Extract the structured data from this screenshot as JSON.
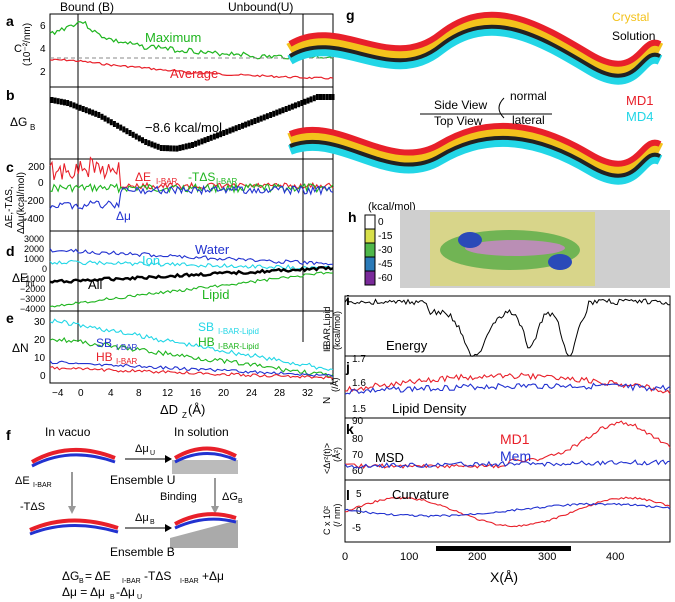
{
  "figure": {
    "panel_letters": [
      "a",
      "b",
      "c",
      "d",
      "e",
      "f",
      "g",
      "h",
      "i",
      "j",
      "k",
      "l"
    ],
    "top_labels": {
      "bound": "Bound (B)",
      "unbound": "Unbound(U)"
    },
    "left": {
      "a": {
        "ylabel": "C",
        "yunit": "(10⁻²/nm)",
        "yticks": [
          "6",
          "4",
          "2"
        ],
        "series": [
          "Maximum",
          "Average"
        ],
        "max": [
          8,
          9,
          10,
          8,
          7,
          6.5,
          6,
          6,
          5.5,
          5.5,
          5,
          5,
          5,
          4.5,
          4.5,
          4.5,
          4.5,
          4.5,
          4.5
        ],
        "avg": [
          4,
          4,
          3.8,
          3.5,
          3.2,
          3,
          2.8,
          2.5,
          2.3,
          2,
          2,
          1.8,
          1.7,
          1.6,
          1.5,
          1.4,
          1.3,
          1.2,
          1.2
        ]
      },
      "b": {
        "ylabel": "ΔG",
        "ylabel_sub": "B",
        "annotation": "−8.6 kcal/mol",
        "g": [
          -0.5,
          -1,
          -2,
          -3,
          -4.5,
          -6,
          -7.5,
          -8.5,
          -8.6,
          -8,
          -7,
          -6,
          -5,
          -4,
          -3,
          -2,
          -1,
          0,
          0
        ]
      },
      "c": {
        "ylabel": "ΔE,-TΔS,",
        "ylabel2": "Δ∆μ(kcal/mol)",
        "yticks": [
          "200",
          "0",
          "-200",
          "-400"
        ],
        "labels": {
          "e": "ΔE",
          "e_sub": "I-BAR",
          "ts": "-TΔS",
          "ts_sub": "I-BAR",
          "mu": "Δμ"
        }
      },
      "d": {
        "ylabel": "ΔE",
        "ylabel_sub": "int",
        "yticks": [
          "3000",
          "2000",
          "1000",
          "0",
          "−1000",
          "−2000",
          "−3000",
          "−4000"
        ],
        "labels": [
          "Water",
          "Ion",
          "All",
          "Lipid"
        ]
      },
      "e": {
        "ylabel": "ΔN",
        "yticks": [
          "30",
          "20",
          "10",
          "0"
        ],
        "labels": {
          "sb_lipid": "SB",
          "sb_lipid_sub": "I-BAR-Lipid",
          "hb_lipid": "HB",
          "hb_lipid_sub": "I-BAR-Lipid",
          "sb": "SB",
          "sb_sub": "I-BAR",
          "hb": "HB",
          "hb_sub": "I-BAR"
        },
        "xticks": [
          "−4",
          "0",
          "4",
          "8",
          "12",
          "16",
          "20",
          "24",
          "28",
          "32"
        ],
        "xlabel": "ΔD",
        "xlabel_sub": "Z",
        "xlabel_unit": "(Å)"
      }
    },
    "f": {
      "in_vacuo": "In vacuo",
      "in_solution": "In solution",
      "dmu_u": "Δμ",
      "dmu_u_sub": "U",
      "de": "ΔE",
      "de_sub": "I-BAR",
      "ensemble_u": "Ensemble U",
      "binding": "Binding",
      "dg": "ΔG",
      "dg_sub": "B",
      "mtds": "-TΔS",
      "dmu_b": "Δμ",
      "dmu_b_sub": "B",
      "ensemble_b": "Ensemble B",
      "eq1": "ΔG",
      "eq1_rest": " = ΔE",
      "eq1_mid": "-TΔS",
      "eq1_end": "+Δμ",
      "eq2": "Δμ = Δμ",
      "eq2_mid": "-Δμ"
    },
    "g": {
      "crystal": "Crystal",
      "solution": "Solution",
      "side_view": "Side View",
      "top_view": "Top View",
      "normal": "normal",
      "lateral": "lateral",
      "md1": "MD1",
      "md4": "MD4"
    },
    "h": {
      "unit": "(kcal/mol)",
      "scale": [
        "0",
        "-15",
        "-30",
        "-45",
        "-60"
      ]
    },
    "right": {
      "i": {
        "ylabel": "E",
        "ylabel_sub": "I-BAR,Lipid",
        "yunit": "(kcal/mol)",
        "name": "Energy"
      },
      "j": {
        "ylabel": "N",
        "ylabel_sub": "Lipid",
        "yunit": "(/Å)",
        "name": "Lipid Density",
        "yticks": [
          "1.7",
          "1.6",
          "1.5"
        ]
      },
      "k": {
        "ylabel": "<Δr²(t)>",
        "yunit": "(Å²)",
        "name": "MSD",
        "yticks": [
          "90",
          "80",
          "70",
          "60"
        ],
        "legend": [
          "MD1",
          "Mem"
        ]
      },
      "l": {
        "ylabel": "C x 10²",
        "yunit": "(/ nm)",
        "name": "Curvature",
        "yticks": [
          "5",
          "0",
          "-5"
        ],
        "xticks": [
          "0",
          "100",
          "200",
          "300",
          "400"
        ],
        "xlabel": "X(Å)"
      }
    }
  },
  "colors": {
    "green": "#1fb51f",
    "red": "#e8202a",
    "blue": "#2232d0",
    "cyan": "#22d6e6",
    "black": "#000000",
    "yellow": "#f3c21c",
    "magenta": "#c21cc8"
  }
}
